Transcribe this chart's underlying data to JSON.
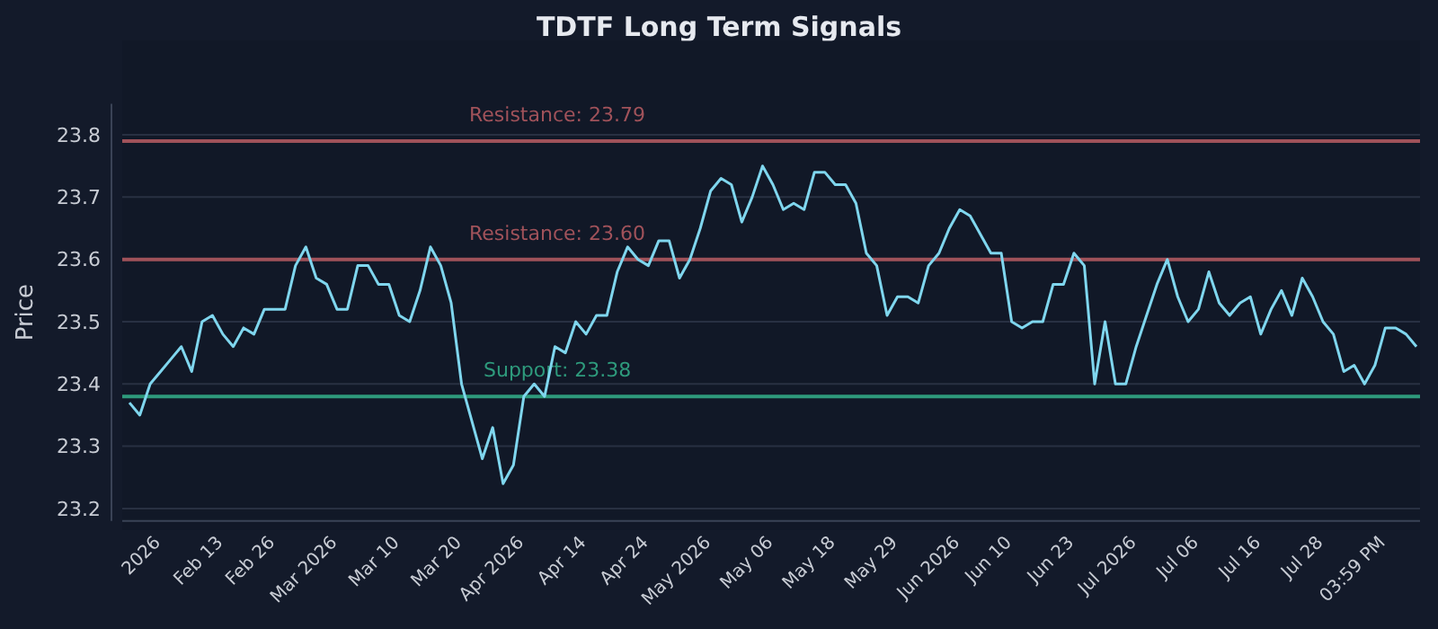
{
  "chart_data": {
    "type": "line",
    "title": "TDTF Long Term Signals",
    "ylabel": "Price",
    "categories": [
      null,
      null,
      null,
      "2026",
      null,
      null,
      null,
      null,
      null,
      "Feb 13",
      null,
      null,
      null,
      null,
      "Feb 26",
      null,
      null,
      null,
      null,
      null,
      "Mar 2026",
      null,
      null,
      null,
      null,
      null,
      "Mar 10",
      null,
      null,
      null,
      null,
      null,
      "Mar 20",
      null,
      null,
      null,
      null,
      null,
      "Apr 2026",
      null,
      null,
      null,
      null,
      null,
      "Apr 14",
      null,
      null,
      null,
      null,
      null,
      "Apr 24",
      null,
      null,
      null,
      null,
      null,
      "May 2026",
      null,
      null,
      null,
      null,
      null,
      "May 06",
      null,
      null,
      null,
      null,
      null,
      "May 18",
      null,
      null,
      null,
      null,
      null,
      "May 29",
      null,
      null,
      null,
      null,
      null,
      "Jun 2026",
      null,
      null,
      null,
      null,
      "Jun 10",
      null,
      null,
      null,
      null,
      null,
      "Jun 23",
      null,
      null,
      null,
      null,
      null,
      "Jul 2026",
      null,
      null,
      null,
      null,
      null,
      "Jul 06",
      null,
      null,
      null,
      null,
      null,
      "Jul 16",
      null,
      null,
      null,
      null,
      null,
      "Jul 28",
      null,
      null,
      null,
      null,
      null,
      "03:59 PM",
      null,
      null,
      null
    ],
    "series": [
      {
        "color": "#7fd6ee",
        "values": [
          23.37,
          23.35,
          23.4,
          23.42,
          23.44,
          23.46,
          23.42,
          23.5,
          23.51,
          23.48,
          23.46,
          23.49,
          23.48,
          23.52,
          23.52,
          23.52,
          23.59,
          23.62,
          23.57,
          23.56,
          23.52,
          23.52,
          23.59,
          23.59,
          23.56,
          23.56,
          23.51,
          23.5,
          23.55,
          23.62,
          23.59,
          23.53,
          23.4,
          23.34,
          23.28,
          23.33,
          23.24,
          23.27,
          23.38,
          23.4,
          23.38,
          23.46,
          23.45,
          23.5,
          23.48,
          23.51,
          23.51,
          23.58,
          23.62,
          23.6,
          23.59,
          23.63,
          23.63,
          23.57,
          23.6,
          23.65,
          23.71,
          23.73,
          23.72,
          23.66,
          23.7,
          23.75,
          23.72,
          23.68,
          23.69,
          23.68,
          23.74,
          23.74,
          23.72,
          23.72,
          23.69,
          23.61,
          23.59,
          23.51,
          23.54,
          23.54,
          23.53,
          23.59,
          23.61,
          23.65,
          23.68,
          23.67,
          23.64,
          23.61,
          23.61,
          23.5,
          23.49,
          23.5,
          23.5,
          23.56,
          23.56,
          23.61,
          23.59,
          23.4,
          23.5,
          23.4,
          23.4,
          23.46,
          23.51,
          23.56,
          23.6,
          23.54,
          23.5,
          23.52,
          23.58,
          23.53,
          23.51,
          23.53,
          23.54,
          23.48,
          23.52,
          23.55,
          23.51,
          23.57,
          23.54,
          23.5,
          23.48,
          23.42,
          23.43,
          23.4,
          23.43,
          23.49,
          23.49,
          23.48,
          23.46
        ]
      }
    ],
    "ylim": [
      23.18,
      23.85
    ],
    "yticks": [
      23.2,
      23.3,
      23.4,
      23.5,
      23.6,
      23.7,
      23.8
    ],
    "grid": "y",
    "ref_lines": [
      {
        "axis": "y",
        "value": 23.79,
        "label": "Resistance: 23.79",
        "color": "#a0525a"
      },
      {
        "axis": "y",
        "value": 23.6,
        "label": "Resistance: 23.60",
        "color": "#a0525a"
      },
      {
        "axis": "y",
        "value": 23.38,
        "label": "Support: 23.38",
        "color": "#2e9a7c"
      }
    ]
  }
}
